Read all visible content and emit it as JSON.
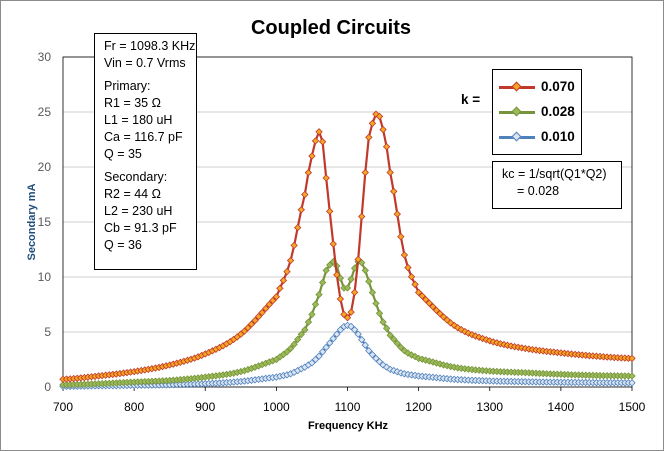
{
  "chart_data": {
    "type": "line",
    "title": "Coupled Circuits",
    "xlabel": "Frequency  KHz",
    "ylabel": "Secondary  mA",
    "xlim": [
      700,
      1500
    ],
    "ylim": [
      0,
      30
    ],
    "xticks": [
      "700",
      "800",
      "900",
      "1000",
      "1100",
      "1200",
      "1300",
      "1400",
      "1500"
    ],
    "yticks": [
      "0",
      "5",
      "10",
      "15",
      "20",
      "25",
      "30"
    ],
    "grid": "horizontal",
    "legend_title": "k =",
    "legend_position": "right",
    "x": [
      700,
      750,
      800,
      850,
      900,
      950,
      1000,
      1020,
      1040,
      1050,
      1060,
      1065,
      1070,
      1080,
      1085,
      1090,
      1095,
      1100,
      1105,
      1110,
      1115,
      1120,
      1125,
      1130,
      1140,
      1145,
      1150,
      1160,
      1180,
      1200,
      1250,
      1300,
      1350,
      1400,
      1450,
      1500
    ],
    "series": [
      {
        "name": "0.070",
        "color": "#c0392b",
        "marker_fill": "#f5a623",
        "values": [
          0.7,
          1.0,
          1.4,
          2.0,
          3.0,
          4.8,
          8.2,
          11.5,
          17.5,
          21.0,
          23.2,
          22.3,
          19.0,
          13.0,
          10.2,
          8.0,
          6.6,
          6.3,
          6.8,
          8.6,
          11.6,
          15.5,
          19.5,
          22.7,
          24.8,
          24.6,
          23.4,
          19.5,
          12.0,
          8.6,
          5.6,
          4.2,
          3.5,
          3.1,
          2.8,
          2.6
        ]
      },
      {
        "name": "0.028",
        "color": "#77933c",
        "marker_fill": "#9bbb59",
        "values": [
          0.2,
          0.3,
          0.45,
          0.6,
          0.9,
          1.4,
          2.5,
          3.5,
          5.2,
          6.6,
          8.4,
          9.5,
          10.6,
          11.4,
          11.0,
          9.9,
          9.0,
          9.0,
          9.8,
          10.8,
          11.4,
          11.3,
          10.6,
          9.6,
          7.6,
          6.7,
          5.9,
          4.7,
          3.3,
          2.6,
          1.8,
          1.45,
          1.3,
          1.15,
          1.05,
          1.0
        ]
      },
      {
        "name": "0.010",
        "color": "#4f81bd",
        "marker_fill": "#dce6f2",
        "values": [
          0.05,
          0.1,
          0.15,
          0.2,
          0.3,
          0.5,
          0.9,
          1.2,
          1.8,
          2.2,
          2.8,
          3.2,
          3.6,
          4.4,
          4.8,
          5.2,
          5.5,
          5.6,
          5.5,
          5.2,
          4.8,
          4.3,
          3.8,
          3.3,
          2.6,
          2.3,
          2.0,
          1.6,
          1.2,
          1.0,
          0.7,
          0.55,
          0.48,
          0.43,
          0.4,
          0.38
        ]
      }
    ]
  },
  "params": {
    "fr": "Fr = 1098.3  KHz",
    "vin": "Vin = 0.7 Vrms",
    "primary": "Primary:",
    "r1": "R1 = 35  Ω",
    "l1": "L1 = 180 uH",
    "ca": "Ca = 116.7  pF",
    "q1": "Q = 35",
    "secondary": "Secondary:",
    "r2": "R2 = 44  Ω",
    "l2": "L2 = 230 uH",
    "cb": "Cb = 91.3  pF",
    "q2": "Q = 36"
  },
  "kc": {
    "line1": "kc = 1/sqrt(Q1*Q2)",
    "line2": "= 0.028"
  }
}
